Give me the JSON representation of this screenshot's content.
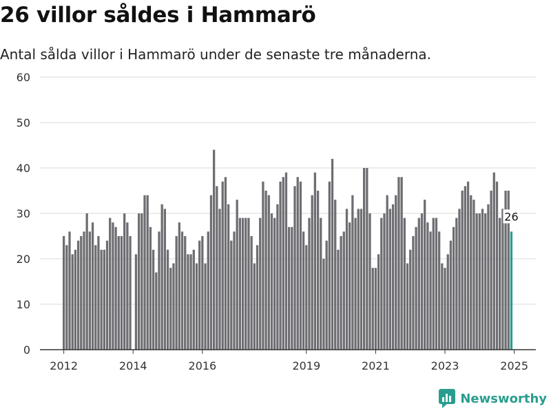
{
  "header": {
    "title": "26 villor såldes i Hammarö",
    "subtitle": "Antal sålda villor i Hammarö under de senaste tre månaderna."
  },
  "brand": {
    "name": "Newsworthy"
  },
  "colors": {
    "bar": "#6e6d72",
    "highlight": "#2a9d8f",
    "grid": "#d9d9d9",
    "axis": "#333333"
  },
  "chart_data": {
    "type": "bar",
    "title": "26 villor såldes i Hammarö",
    "subtitle": "Antal sålda villor i Hammarö under de senaste tre månaderna.",
    "xlabel": "",
    "ylabel": "",
    "ylim": [
      0,
      60
    ],
    "yticks": [
      0,
      10,
      20,
      30,
      40,
      50,
      60
    ],
    "xticks": [
      "2012",
      "2014",
      "2016",
      "2019",
      "2021",
      "2023",
      "2025"
    ],
    "grid": true,
    "frequency": "monthly",
    "start": "2012-01",
    "end": "2025-01",
    "highlight_label": "26",
    "values": [
      25,
      23,
      26,
      21,
      22,
      24,
      25,
      26,
      30,
      26,
      28,
      23,
      25,
      22,
      22,
      24,
      29,
      28,
      27,
      25,
      25,
      30,
      28,
      25,
      0,
      21,
      30,
      30,
      34,
      34,
      27,
      22,
      17,
      26,
      32,
      31,
      22,
      18,
      19,
      25,
      28,
      26,
      25,
      21,
      21,
      22,
      19,
      24,
      25,
      19,
      26,
      34,
      44,
      36,
      31,
      37,
      38,
      32,
      24,
      26,
      33,
      29,
      29,
      29,
      29,
      25,
      19,
      23,
      29,
      37,
      35,
      34,
      30,
      29,
      32,
      37,
      38,
      39,
      27,
      27,
      36,
      38,
      37,
      26,
      23,
      29,
      34,
      39,
      35,
      29,
      20,
      24,
      37,
      42,
      33,
      22,
      25,
      26,
      31,
      28,
      34,
      29,
      31,
      31,
      40,
      40,
      30,
      18,
      18,
      21,
      29,
      30,
      34,
      31,
      32,
      34,
      38,
      38,
      29,
      19,
      22,
      25,
      27,
      29,
      30,
      33,
      28,
      26,
      29,
      29,
      26,
      19,
      18,
      21,
      24,
      27,
      29,
      31,
      35,
      36,
      37,
      34,
      33,
      30,
      30,
      31,
      30,
      32,
      35,
      39,
      37,
      29,
      31,
      35,
      35,
      26
    ]
  }
}
